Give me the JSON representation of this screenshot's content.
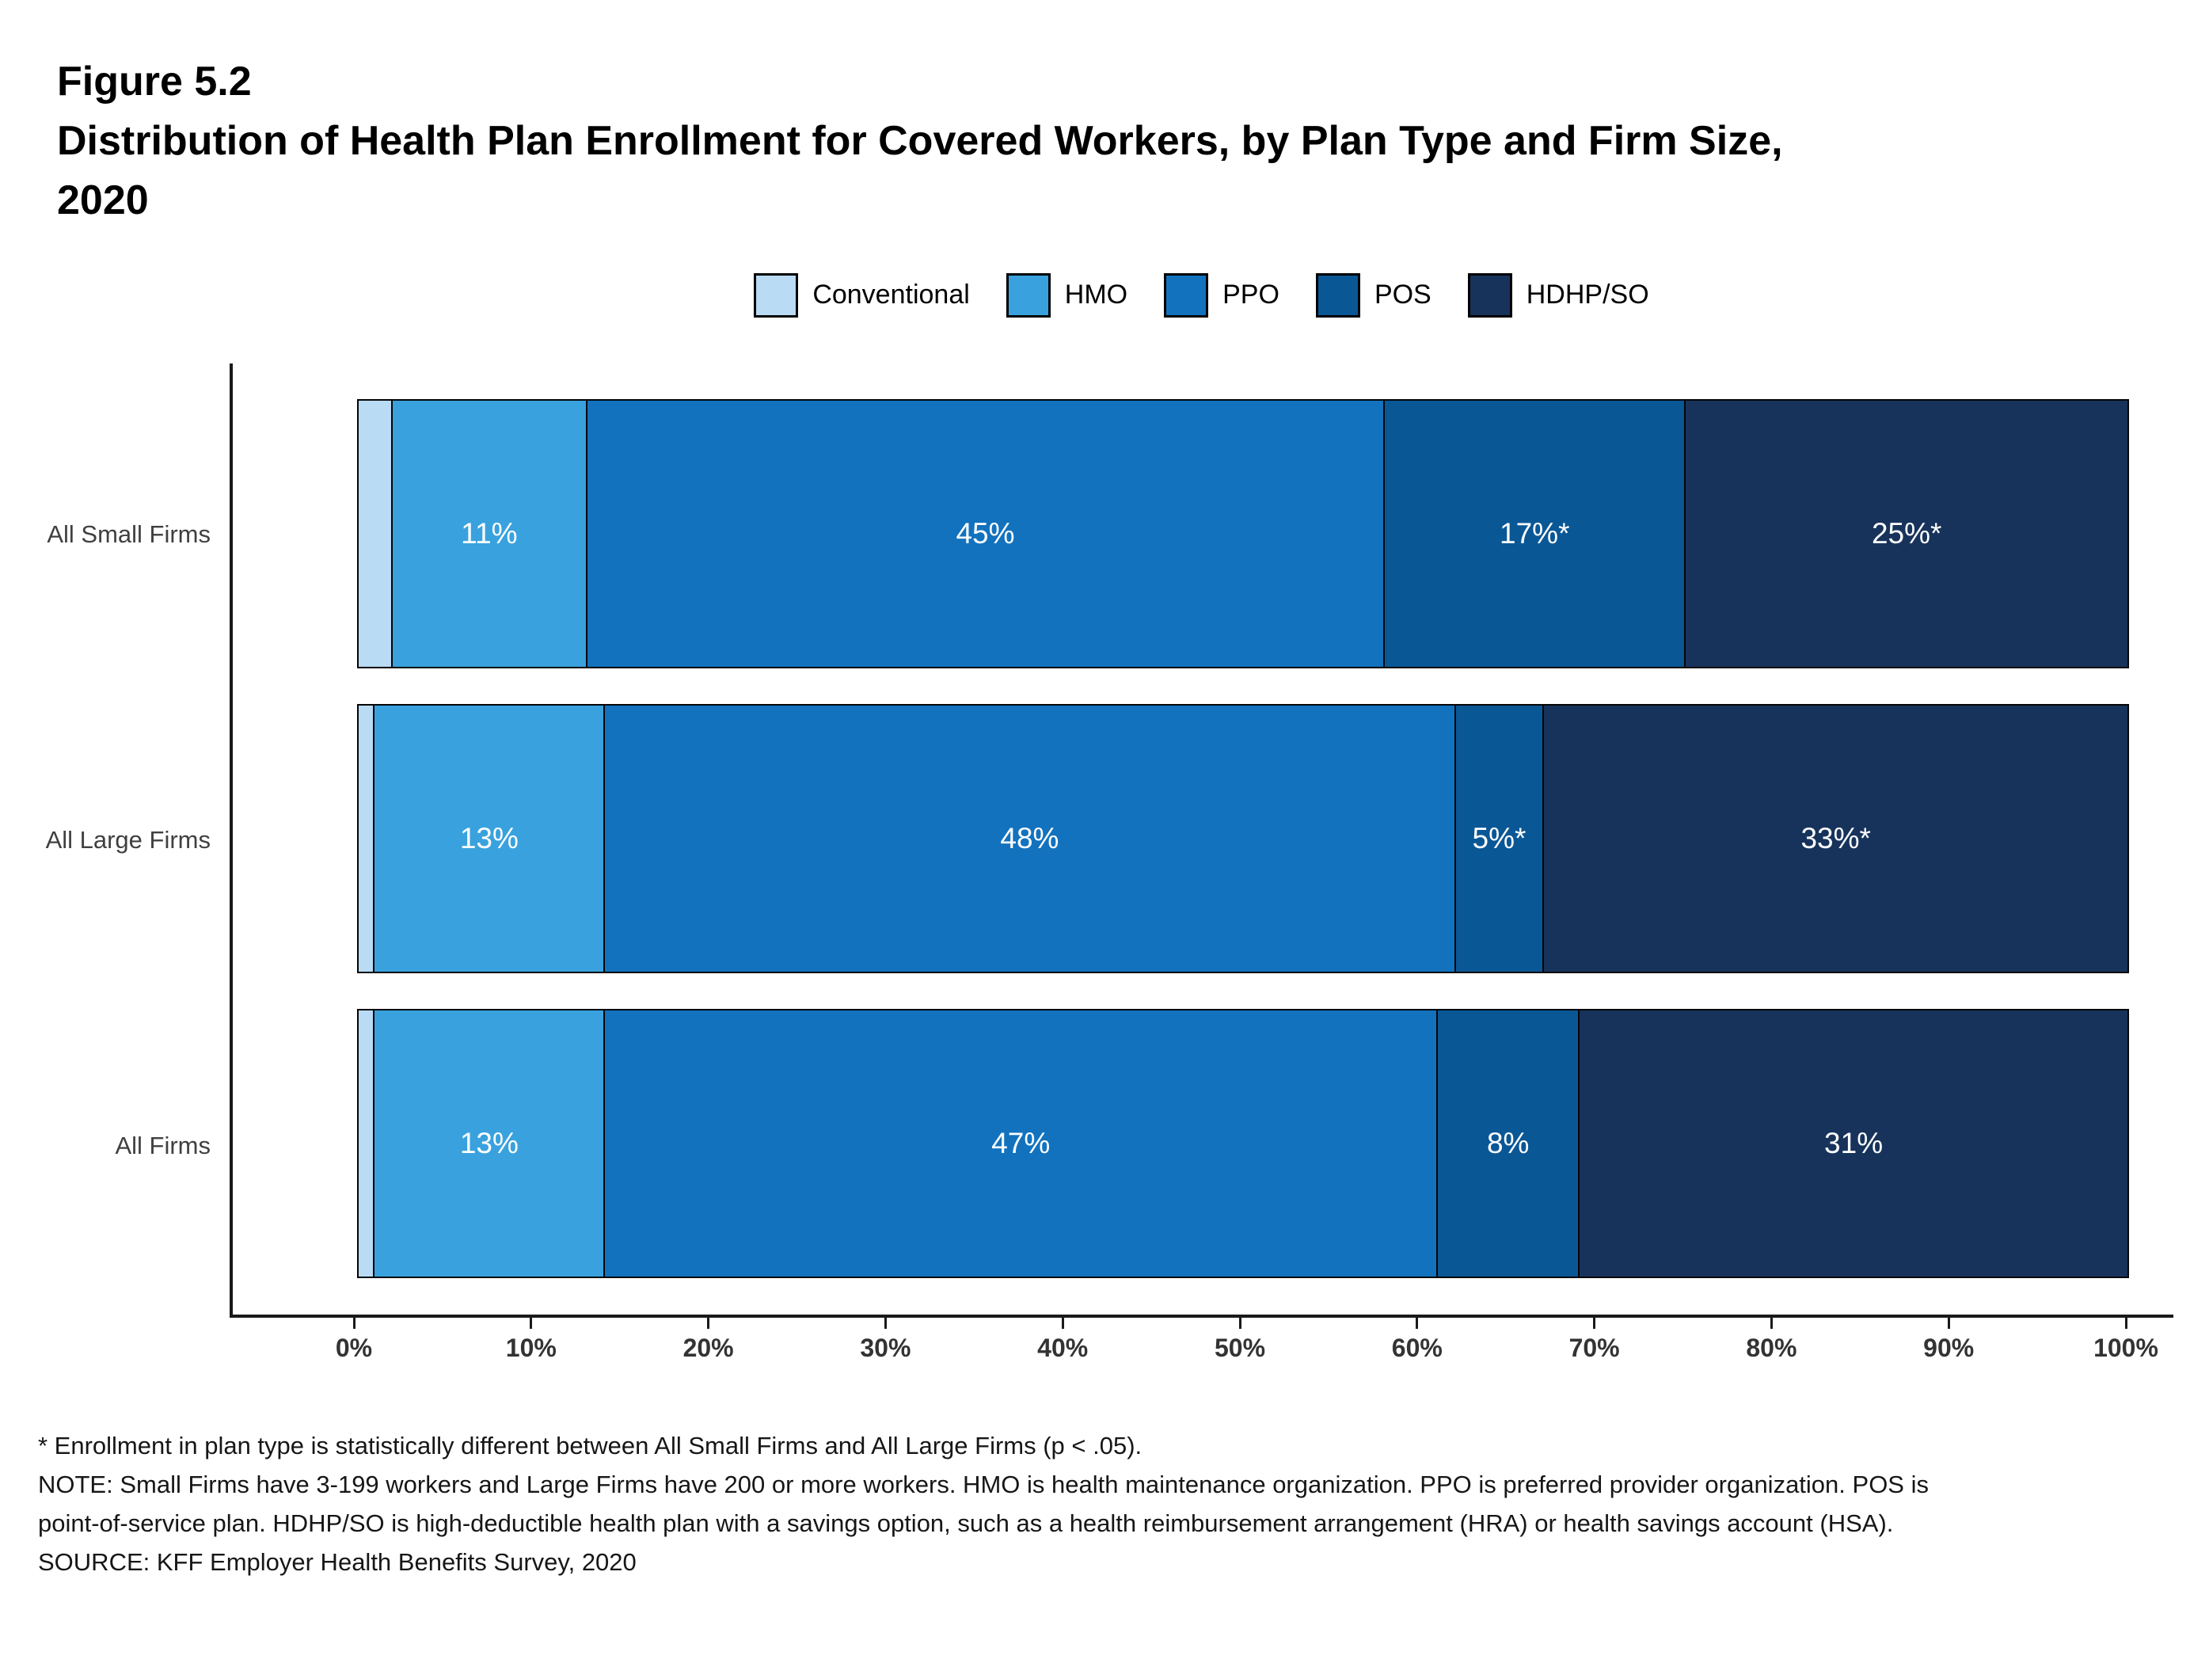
{
  "header": {
    "figure_label": "Figure 5.2",
    "title_line1": "Distribution of Health Plan Enrollment for Covered Workers, by Plan Type and Firm Size,",
    "title_line2": "2020"
  },
  "chart_data": {
    "type": "bar",
    "orientation": "horizontal",
    "stacked": true,
    "title": "Distribution of Health Plan Enrollment for Covered Workers, by Plan Type and Firm Size, 2020",
    "categories": [
      "All Small Firms",
      "All Large Firms",
      "All Firms"
    ],
    "series": [
      {
        "name": "Conventional",
        "color": "#B9DBF4",
        "values": [
          2,
          1,
          1
        ],
        "labels": [
          "",
          "",
          ""
        ]
      },
      {
        "name": "HMO",
        "color": "#39A2DE",
        "values": [
          11,
          13,
          13
        ],
        "labels": [
          "11%",
          "13%",
          "13%"
        ]
      },
      {
        "name": "PPO",
        "color": "#1272BE",
        "values": [
          45,
          48,
          47
        ],
        "labels": [
          "45%",
          "48%",
          "47%"
        ]
      },
      {
        "name": "POS",
        "color": "#0A5796",
        "values": [
          17,
          5,
          8
        ],
        "labels": [
          "17%*",
          "5%*",
          "8%"
        ]
      },
      {
        "name": "HDHP/SO",
        "color": "#17335B",
        "values": [
          25,
          33,
          31
        ],
        "labels": [
          "25%*",
          "33%*",
          "31%"
        ]
      }
    ],
    "xlim": [
      0,
      100
    ],
    "x_ticks": [
      "0%",
      "10%",
      "20%",
      "30%",
      "40%",
      "50%",
      "60%",
      "70%",
      "80%",
      "90%",
      "100%"
    ],
    "legend_position": "top",
    "grid": false,
    "bar_label_color": "#ffffff"
  },
  "footnotes": {
    "stat_note": "* Enrollment in plan type is statistically different between All Small Firms and All Large Firms (p < .05).",
    "note": "NOTE: Small Firms have 3-199 workers and Large Firms have 200 or more workers. HMO is health maintenance organization. PPO is preferred provider organization. POS is point-of-service plan. HDHP/SO is high-deductible health plan with a savings option, such as a health reimbursement arrangement (HRA) or health savings account (HSA).",
    "source": "SOURCE: KFF Employer Health Benefits Survey, 2020"
  }
}
